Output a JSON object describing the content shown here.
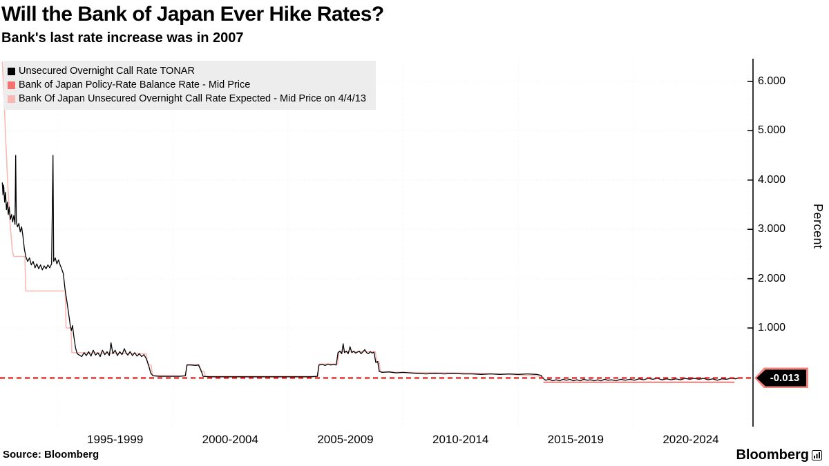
{
  "header": {
    "title": "Will the Bank of Japan Ever Hike Rates?",
    "subtitle": "Bank's last rate increase was in 2007"
  },
  "footer": {
    "source": "Source: Bloomberg",
    "brand": "Bloomberg"
  },
  "chart_data": {
    "type": "line",
    "title": "Will the Bank of Japan Ever Hike Rates?",
    "subtitle": "Bank's last rate increase was in 2007",
    "xlabel": "",
    "ylabel": "Percent",
    "xlim": [
      1992.5,
      2025.2
    ],
    "ylim": [
      -1.0,
      6.46
    ],
    "grid": "on",
    "legend_position": "top-left",
    "yticks": [
      {
        "value": 6,
        "label": "6.000"
      },
      {
        "value": 5,
        "label": "5.000"
      },
      {
        "value": 4,
        "label": "4.000"
      },
      {
        "value": 3,
        "label": "3.000"
      },
      {
        "value": 2,
        "label": "2.000"
      },
      {
        "value": 1,
        "label": "1.000"
      }
    ],
    "xticks": [
      {
        "center": 1997.5,
        "label": "1995-1999"
      },
      {
        "center": 2002.5,
        "label": "2000-2004"
      },
      {
        "center": 2007.5,
        "label": "2005-2009"
      },
      {
        "center": 2012.5,
        "label": "2010-2014"
      },
      {
        "center": 2017.5,
        "label": "2015-2019"
      },
      {
        "center": 2022.5,
        "label": "2020-2024"
      }
    ],
    "xgrid": [
      1995,
      2000,
      2005,
      2010,
      2015,
      2020,
      2025
    ],
    "ygrid": [
      0,
      1,
      2,
      3,
      4,
      5,
      6
    ],
    "last_price": {
      "value": -0.013,
      "label": "-0.013",
      "line_color": "#df1a1a",
      "tag_border": "#f0857e",
      "tag_bg": "#000000",
      "tag_text_color": "#ffffff"
    },
    "series": [
      {
        "id": "tonar",
        "name": "Unsecured Overnight Call Rate TONAR",
        "color": "#000000",
        "width": 1.3,
        "points": [
          [
            1992.6,
            3.95
          ],
          [
            1992.63,
            3.7
          ],
          [
            1992.66,
            3.9
          ],
          [
            1992.7,
            3.55
          ],
          [
            1992.74,
            3.75
          ],
          [
            1992.78,
            3.4
          ],
          [
            1992.82,
            3.55
          ],
          [
            1992.86,
            3.3
          ],
          [
            1992.9,
            3.45
          ],
          [
            1992.95,
            3.2
          ],
          [
            1993.0,
            3.3
          ],
          [
            1993.05,
            3.15
          ],
          [
            1993.1,
            3.28
          ],
          [
            1993.15,
            3.1
          ],
          [
            1993.18,
            4.5
          ],
          [
            1993.21,
            3.15
          ],
          [
            1993.26,
            3.05
          ],
          [
            1993.32,
            3.12
          ],
          [
            1993.38,
            2.95
          ],
          [
            1993.44,
            3.05
          ],
          [
            1993.5,
            2.85
          ],
          [
            1993.56,
            2.6
          ],
          [
            1993.62,
            2.45
          ],
          [
            1993.7,
            2.35
          ],
          [
            1993.78,
            2.42
          ],
          [
            1993.86,
            2.28
          ],
          [
            1993.94,
            2.35
          ],
          [
            1994.02,
            2.22
          ],
          [
            1994.1,
            2.3
          ],
          [
            1994.18,
            2.2
          ],
          [
            1994.26,
            2.28
          ],
          [
            1994.34,
            2.18
          ],
          [
            1994.42,
            2.26
          ],
          [
            1994.5,
            2.2
          ],
          [
            1994.58,
            2.28
          ],
          [
            1994.66,
            2.22
          ],
          [
            1994.74,
            2.3
          ],
          [
            1994.8,
            4.5
          ],
          [
            1994.83,
            2.35
          ],
          [
            1994.9,
            2.42
          ],
          [
            1994.97,
            2.3
          ],
          [
            1995.04,
            2.38
          ],
          [
            1995.11,
            2.28
          ],
          [
            1995.18,
            2.2
          ],
          [
            1995.25,
            2.1
          ],
          [
            1995.32,
            1.8
          ],
          [
            1995.4,
            1.55
          ],
          [
            1995.48,
            1.3
          ],
          [
            1995.55,
            1.05
          ],
          [
            1995.6,
            0.95
          ],
          [
            1995.65,
            1.05
          ],
          [
            1995.7,
            0.85
          ],
          [
            1995.78,
            0.6
          ],
          [
            1995.85,
            0.48
          ],
          [
            1995.95,
            0.45
          ],
          [
            1996.05,
            0.42
          ],
          [
            1996.15,
            0.5
          ],
          [
            1996.25,
            0.44
          ],
          [
            1996.35,
            0.52
          ],
          [
            1996.45,
            0.43
          ],
          [
            1996.55,
            0.55
          ],
          [
            1996.65,
            0.45
          ],
          [
            1996.75,
            0.5
          ],
          [
            1996.85,
            0.42
          ],
          [
            1996.95,
            0.55
          ],
          [
            1997.05,
            0.46
          ],
          [
            1997.15,
            0.52
          ],
          [
            1997.25,
            0.44
          ],
          [
            1997.32,
            0.7
          ],
          [
            1997.4,
            0.48
          ],
          [
            1997.5,
            0.55
          ],
          [
            1997.6,
            0.44
          ],
          [
            1997.7,
            0.52
          ],
          [
            1997.8,
            0.46
          ],
          [
            1997.9,
            0.58
          ],
          [
            1997.97,
            0.5
          ],
          [
            1998.05,
            0.45
          ],
          [
            1998.15,
            0.52
          ],
          [
            1998.25,
            0.44
          ],
          [
            1998.35,
            0.5
          ],
          [
            1998.45,
            0.43
          ],
          [
            1998.55,
            0.48
          ],
          [
            1998.65,
            0.42
          ],
          [
            1998.75,
            0.46
          ],
          [
            1998.85,
            0.38
          ],
          [
            1998.95,
            0.25
          ],
          [
            1999.05,
            0.08
          ],
          [
            1999.15,
            0.03
          ],
          [
            1999.4,
            0.02
          ],
          [
            1999.7,
            0.02
          ],
          [
            2000.0,
            0.02
          ],
          [
            2000.3,
            0.02
          ],
          [
            2000.55,
            0.03
          ],
          [
            2000.62,
            0.25
          ],
          [
            2000.8,
            0.25
          ],
          [
            2001.0,
            0.24
          ],
          [
            2001.12,
            0.25
          ],
          [
            2001.22,
            0.15
          ],
          [
            2001.32,
            0.02
          ],
          [
            2001.6,
            0.01
          ],
          [
            2002.0,
            0.01
          ],
          [
            2002.5,
            0.01
          ],
          [
            2003.0,
            0.01
          ],
          [
            2003.5,
            0.01
          ],
          [
            2004.0,
            0.01
          ],
          [
            2004.5,
            0.01
          ],
          [
            2005.0,
            0.01
          ],
          [
            2005.5,
            0.01
          ],
          [
            2006.0,
            0.01
          ],
          [
            2006.28,
            0.02
          ],
          [
            2006.35,
            0.25
          ],
          [
            2006.5,
            0.26
          ],
          [
            2006.62,
            0.24
          ],
          [
            2006.74,
            0.27
          ],
          [
            2006.86,
            0.25
          ],
          [
            2006.98,
            0.26
          ],
          [
            2007.1,
            0.25
          ],
          [
            2007.18,
            0.5
          ],
          [
            2007.26,
            0.53
          ],
          [
            2007.34,
            0.48
          ],
          [
            2007.4,
            0.68
          ],
          [
            2007.46,
            0.5
          ],
          [
            2007.54,
            0.53
          ],
          [
            2007.62,
            0.48
          ],
          [
            2007.7,
            0.62
          ],
          [
            2007.78,
            0.5
          ],
          [
            2007.86,
            0.53
          ],
          [
            2007.94,
            0.49
          ],
          [
            2008.02,
            0.51
          ],
          [
            2008.1,
            0.53
          ],
          [
            2008.18,
            0.48
          ],
          [
            2008.26,
            0.52
          ],
          [
            2008.34,
            0.56
          ],
          [
            2008.42,
            0.5
          ],
          [
            2008.5,
            0.48
          ],
          [
            2008.58,
            0.52
          ],
          [
            2008.66,
            0.49
          ],
          [
            2008.74,
            0.51
          ],
          [
            2008.82,
            0.3
          ],
          [
            2008.9,
            0.32
          ],
          [
            2008.97,
            0.12
          ],
          [
            2009.1,
            0.1
          ],
          [
            2009.4,
            0.11
          ],
          [
            2009.7,
            0.09
          ],
          [
            2010.0,
            0.1
          ],
          [
            2010.3,
            0.09
          ],
          [
            2010.6,
            0.08
          ],
          [
            2011.0,
            0.07
          ],
          [
            2011.4,
            0.08
          ],
          [
            2011.8,
            0.07
          ],
          [
            2012.2,
            0.08
          ],
          [
            2012.6,
            0.07
          ],
          [
            2013.0,
            0.07
          ],
          [
            2013.4,
            0.06
          ],
          [
            2013.8,
            0.07
          ],
          [
            2014.2,
            0.06
          ],
          [
            2014.6,
            0.07
          ],
          [
            2015.0,
            0.06
          ],
          [
            2015.4,
            0.07
          ],
          [
            2015.8,
            0.06
          ],
          [
            2016.0,
            0.04
          ],
          [
            2016.08,
            -0.02
          ],
          [
            2016.2,
            -0.06
          ],
          [
            2016.35,
            -0.04
          ],
          [
            2016.5,
            -0.07
          ],
          [
            2016.65,
            -0.05
          ],
          [
            2016.8,
            -0.07
          ],
          [
            2016.95,
            -0.04
          ],
          [
            2017.1,
            -0.06
          ],
          [
            2017.25,
            -0.04
          ],
          [
            2017.4,
            -0.07
          ],
          [
            2017.55,
            -0.05
          ],
          [
            2017.7,
            -0.07
          ],
          [
            2017.85,
            -0.04
          ],
          [
            2018.0,
            -0.06
          ],
          [
            2018.15,
            -0.05
          ],
          [
            2018.3,
            -0.07
          ],
          [
            2018.45,
            -0.05
          ],
          [
            2018.6,
            -0.07
          ],
          [
            2018.75,
            -0.04
          ],
          [
            2018.9,
            -0.06
          ],
          [
            2019.05,
            -0.05
          ],
          [
            2019.25,
            -0.07
          ],
          [
            2019.45,
            -0.04
          ],
          [
            2019.65,
            -0.06
          ],
          [
            2019.85,
            -0.04
          ],
          [
            2020.05,
            -0.06
          ],
          [
            2020.25,
            -0.03
          ],
          [
            2020.45,
            -0.05
          ],
          [
            2020.65,
            -0.02
          ],
          [
            2020.85,
            -0.04
          ],
          [
            2021.05,
            -0.02
          ],
          [
            2021.25,
            -0.05
          ],
          [
            2021.45,
            -0.03
          ],
          [
            2021.65,
            -0.05
          ],
          [
            2021.85,
            -0.03
          ],
          [
            2022.05,
            -0.05
          ],
          [
            2022.25,
            -0.02
          ],
          [
            2022.45,
            -0.04
          ],
          [
            2022.65,
            -0.02
          ],
          [
            2022.85,
            -0.04
          ],
          [
            2023.05,
            -0.02
          ],
          [
            2023.25,
            -0.05
          ],
          [
            2023.45,
            -0.03
          ],
          [
            2023.65,
            -0.06
          ],
          [
            2023.85,
            -0.03
          ],
          [
            2024.05,
            -0.04
          ],
          [
            2024.25,
            -0.02
          ],
          [
            2024.45,
            -0.03
          ],
          [
            2024.55,
            -0.013
          ]
        ]
      },
      {
        "id": "policy-balance",
        "name": "Bank of Japan Policy-Rate Balance Rate - Mid Price",
        "color": "#f4736e",
        "width": 1.8,
        "points": [
          [
            2016.1,
            -0.1
          ],
          [
            2024.4,
            -0.1
          ]
        ]
      },
      {
        "id": "expected",
        "name": "Bank Of Japan Unsecured Overnight Call Rate Expected - Mid Price on 4/4/13",
        "color": "#f9b8b3",
        "width": 1.6,
        "points": [
          [
            1992.6,
            6.4
          ],
          [
            1992.68,
            5.6
          ],
          [
            1992.76,
            4.7
          ],
          [
            1992.84,
            3.9
          ],
          [
            1992.94,
            3.1
          ],
          [
            1993.04,
            2.55
          ],
          [
            1993.1,
            2.45
          ],
          [
            1993.58,
            2.45
          ],
          [
            1993.62,
            1.75
          ],
          [
            1995.33,
            1.75
          ],
          [
            1995.37,
            1.0
          ],
          [
            1995.58,
            1.0
          ],
          [
            1995.62,
            0.5
          ],
          [
            1998.85,
            0.48
          ],
          [
            1998.92,
            0.25
          ],
          [
            1999.06,
            0.25
          ],
          [
            1999.12,
            0.04
          ],
          [
            2000.55,
            0.03
          ],
          [
            2000.62,
            0.26
          ],
          [
            2001.15,
            0.26
          ],
          [
            2001.22,
            0.12
          ],
          [
            2001.36,
            0.12
          ],
          [
            2001.42,
            0.02
          ],
          [
            2006.3,
            0.02
          ],
          [
            2006.36,
            0.27
          ],
          [
            2007.16,
            0.27
          ],
          [
            2007.22,
            0.52
          ],
          [
            2008.8,
            0.52
          ],
          [
            2008.86,
            0.32
          ],
          [
            2008.96,
            0.32
          ],
          [
            2009.02,
            0.11
          ],
          [
            2010.0,
            0.1
          ],
          [
            2011.0,
            0.095
          ],
          [
            2012.0,
            0.09
          ],
          [
            2013.0,
            0.085
          ],
          [
            2014.0,
            0.07
          ],
          [
            2015.0,
            0.05
          ],
          [
            2015.8,
            0.03
          ],
          [
            2016.0,
            0.01
          ]
        ]
      }
    ]
  }
}
